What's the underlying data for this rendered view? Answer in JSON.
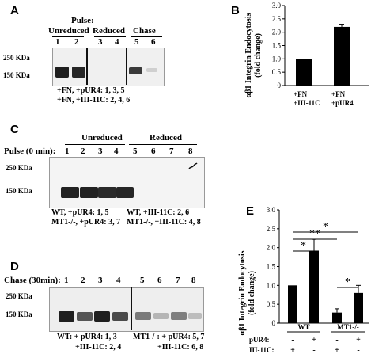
{
  "panels": {
    "A": {
      "label": "A",
      "pulse_label": "Pulse:",
      "headers": [
        "Unreduced",
        "Reduced",
        "Chase"
      ],
      "lanes": [
        "1",
        "2",
        "3",
        "4",
        "5",
        "6"
      ],
      "markers": [
        "250 KDa",
        "150 KDa"
      ],
      "legend": [
        "+FN, +pUR4: 1, 3, 5",
        "+FN, +III-11C: 2, 4, 6"
      ]
    },
    "B": {
      "label": "B",
      "ylabel_line1": "αβ1 Integrin Endocytosis",
      "ylabel_line2": "(fold change)",
      "xticks": [
        [
          "+FN",
          "+III-11C"
        ],
        [
          "+FN",
          "+pUR4"
        ]
      ]
    },
    "C": {
      "label": "C",
      "pulse_label": "Pulse (0 min):",
      "headers": [
        "Unreduced",
        "Reduced"
      ],
      "lanes": [
        "1",
        "2",
        "3",
        "4",
        "5",
        "6",
        "7",
        "8"
      ],
      "markers": [
        "250 KDa",
        "150 KDa"
      ],
      "legend_left": [
        "WT, +pUR4: 1, 5",
        "MT1-/-, +pUR4: 3, 7"
      ],
      "legend_right": [
        "WT, +III-11C: 2, 6",
        "MT1-/-, +III-11C: 4, 8"
      ]
    },
    "D": {
      "label": "D",
      "chase_label": "Chase (30min):",
      "lanes": [
        "1",
        "2",
        "3",
        "4",
        "5",
        "6",
        "7",
        "8"
      ],
      "markers": [
        "250 KDa",
        "150 KDa"
      ],
      "legend_left": [
        "WT: + pUR4: 1, 3",
        "+III-11C: 2, 4"
      ],
      "legend_right": [
        "MT1-/-: + pUR4: 5, 7",
        "+III-11C: 6, 8"
      ]
    },
    "E": {
      "label": "E",
      "ylabel_line1": "αβ1 Integrin Endocytosis",
      "ylabel_line2": "(fold change)",
      "group_labels": [
        "WT",
        "MT1-/-"
      ],
      "row_labels": [
        "pUR4:",
        "III-11C:"
      ],
      "pur4_signs": [
        "-",
        "+",
        "-",
        "+"
      ],
      "iii11c_signs": [
        "+",
        "-",
        "+",
        "-"
      ],
      "sig": [
        "*",
        "**",
        "*",
        "*"
      ]
    }
  },
  "chart_data": [
    {
      "type": "bar",
      "panel": "B",
      "categories": [
        "+FN +III-11C",
        "+FN +pUR4"
      ],
      "values": [
        1.0,
        2.2
      ],
      "errors": [
        0,
        0.1
      ],
      "ylabel": "αβ1 Integrin Endocytosis (fold change)",
      "ylim": [
        0,
        3.0
      ],
      "yticks": [
        "0",
        "0.5",
        "1.0",
        "1.5",
        "2.0",
        "2.5",
        "3.0"
      ]
    },
    {
      "type": "bar",
      "panel": "E",
      "categories": [
        "WT III-11C",
        "WT pUR4",
        "MT1-/- III-11C",
        "MT1-/- pUR4"
      ],
      "values": [
        1.0,
        1.92,
        0.28,
        0.8
      ],
      "errors": [
        0,
        0.3,
        0.1,
        0.2
      ],
      "ylabel": "αβ1 Integrin Endocytosis (fold change)",
      "ylim": [
        0,
        3.0
      ],
      "yticks": [
        "0",
        "0.5",
        "1.0",
        "1.5",
        "2.0",
        "2.5",
        "3.0"
      ]
    }
  ]
}
